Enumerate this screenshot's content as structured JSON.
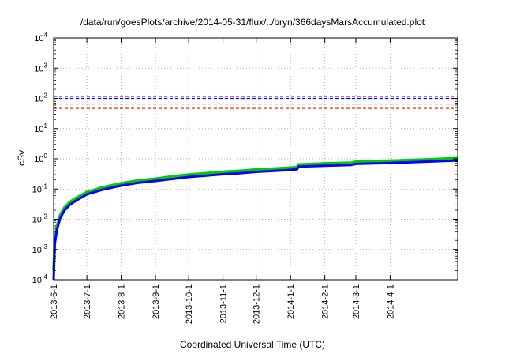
{
  "chart_data": {
    "type": "line",
    "title": "/data/run/goesPlots/archive/2014-05-31/flux/../bryn/366daysMarsAccumulated.plot",
    "xlabel": "Coordinated Universal Time (UTC)",
    "ylabel": "cSv",
    "x_start": "2013-06-01",
    "x_end": "2014-06-01",
    "x_tick_labels": [
      "2013-6-1",
      "2013-7-1",
      "2013-8-1",
      "2013-9-1",
      "2013-10-1",
      "2013-11-1",
      "2013-12-1",
      "2014-1-1",
      "2014-2-1",
      "2014-3-1",
      "2014-4-1"
    ],
    "y_scale": "log",
    "ylim": [
      0.0001,
      10000
    ],
    "y_tick_labels": [
      {
        "base": "10",
        "exp": "-4"
      },
      {
        "base": "10",
        "exp": "-3"
      },
      {
        "base": "10",
        "exp": "-2"
      },
      {
        "base": "10",
        "exp": "-1"
      },
      {
        "base": "10",
        "exp": "0"
      },
      {
        "base": "10",
        "exp": "1"
      },
      {
        "base": "10",
        "exp": "2"
      },
      {
        "base": "10",
        "exp": "3"
      },
      {
        "base": "10",
        "exp": "4"
      }
    ],
    "grid": true,
    "reference_lines": [
      {
        "y": 115,
        "color": "#9b30ff",
        "style": "dashed"
      },
      {
        "y": 100,
        "color": "#0000ff",
        "style": "dashed"
      },
      {
        "y": 65,
        "color": "#00cc00",
        "style": "dashed"
      },
      {
        "y": 47,
        "color": "#ff0000",
        "style": "dashed"
      }
    ],
    "series": [
      {
        "color": "#00cc00",
        "x": [
          "2013-06-01",
          "2013-06-02",
          "2013-06-04",
          "2013-06-07",
          "2013-06-11",
          "2013-06-16",
          "2013-06-21",
          "2013-07-01",
          "2013-07-16",
          "2013-08-01",
          "2013-08-16",
          "2013-09-01",
          "2013-09-16",
          "2013-10-01",
          "2013-10-16",
          "2013-11-01",
          "2013-11-16",
          "2013-12-01",
          "2013-12-16",
          "2014-01-01",
          "2014-01-07",
          "2014-01-08",
          "2014-02-01",
          "2014-02-25",
          "2014-03-01",
          "2014-04-01",
          "2014-05-01",
          "2014-06-01"
        ],
        "y": [
          0.0002,
          0.002,
          0.006,
          0.014,
          0.025,
          0.038,
          0.05,
          0.08,
          0.115,
          0.155,
          0.19,
          0.22,
          0.26,
          0.3,
          0.33,
          0.37,
          0.4,
          0.44,
          0.47,
          0.51,
          0.53,
          0.65,
          0.7,
          0.74,
          0.8,
          0.86,
          0.94,
          1.05
        ]
      },
      {
        "color": "#0000ff",
        "x": [
          "2013-06-01",
          "2013-06-02",
          "2013-06-04",
          "2013-06-07",
          "2013-06-11",
          "2013-06-16",
          "2013-06-21",
          "2013-07-01",
          "2013-07-16",
          "2013-08-01",
          "2013-08-16",
          "2013-09-01",
          "2013-09-16",
          "2013-10-01",
          "2013-10-16",
          "2013-11-01",
          "2013-11-16",
          "2013-12-01",
          "2013-12-16",
          "2014-01-01",
          "2014-01-07",
          "2014-01-08",
          "2014-02-01",
          "2014-02-25",
          "2014-03-01",
          "2014-04-01",
          "2014-05-01",
          "2014-06-01"
        ],
        "y": [
          0.0001,
          0.0015,
          0.0045,
          0.011,
          0.02,
          0.031,
          0.041,
          0.067,
          0.097,
          0.13,
          0.16,
          0.185,
          0.215,
          0.25,
          0.275,
          0.31,
          0.335,
          0.37,
          0.395,
          0.43,
          0.45,
          0.55,
          0.59,
          0.63,
          0.68,
          0.73,
          0.8,
          0.88
        ]
      }
    ]
  }
}
